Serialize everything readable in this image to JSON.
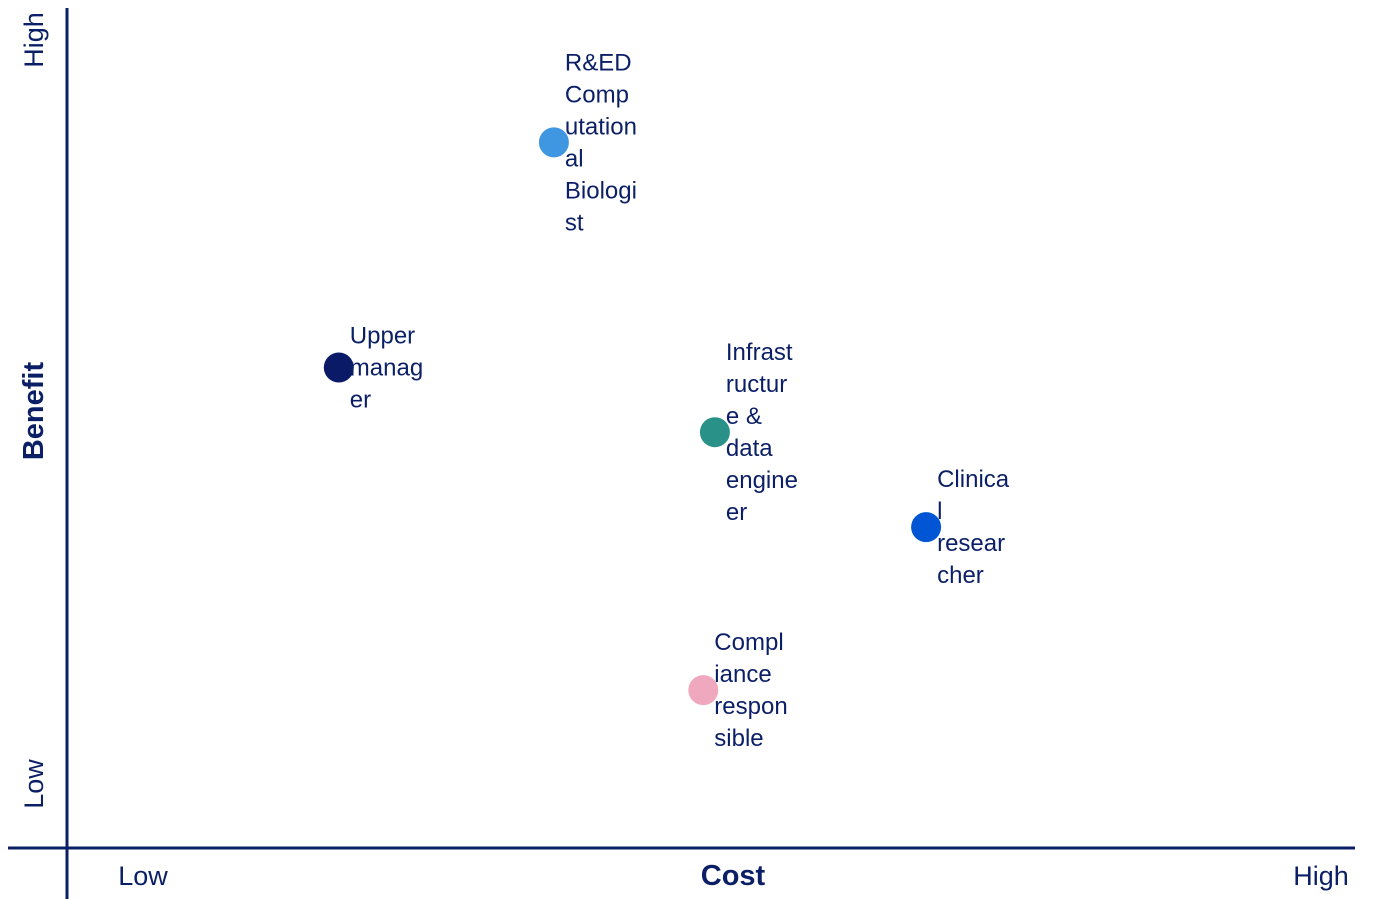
{
  "chart_data": {
    "type": "scatter",
    "xlabel": "Cost",
    "ylabel": "Benefit",
    "x_low_label": "Low",
    "x_high_label": "High",
    "y_low_label": "Low",
    "y_high_label": "High",
    "xlim": [
      0,
      100
    ],
    "ylim": [
      0,
      100
    ],
    "grid": false,
    "points": [
      {
        "label": "R&ED Computational Biologist",
        "label_lines": [
          "R&ED",
          "Comp",
          "utation",
          "al",
          "Biologi",
          "st"
        ],
        "x": 37.8,
        "y": 84.0,
        "color": "#3e97e0"
      },
      {
        "label": "Upper manager",
        "label_lines": [
          "Upper",
          "manag",
          "er"
        ],
        "x": 21.1,
        "y": 57.2,
        "color": "#0a1a66"
      },
      {
        "label": "Infrastructure & data engineer",
        "label_lines": [
          "Infrast",
          "ructur",
          "e &",
          "data",
          "engine",
          "er"
        ],
        "x": 50.3,
        "y": 49.5,
        "color": "#2a9189"
      },
      {
        "label": "Clinical researcher",
        "label_lines": [
          "Clinica",
          "l",
          "resear",
          "cher"
        ],
        "x": 66.7,
        "y": 38.2,
        "color": "#0055d4"
      },
      {
        "label": "Compliance responsible",
        "label_lines": [
          "Compl",
          "iance",
          "respon",
          "sible"
        ],
        "x": 49.4,
        "y": 18.8,
        "color": "#f0a8bf"
      }
    ]
  }
}
